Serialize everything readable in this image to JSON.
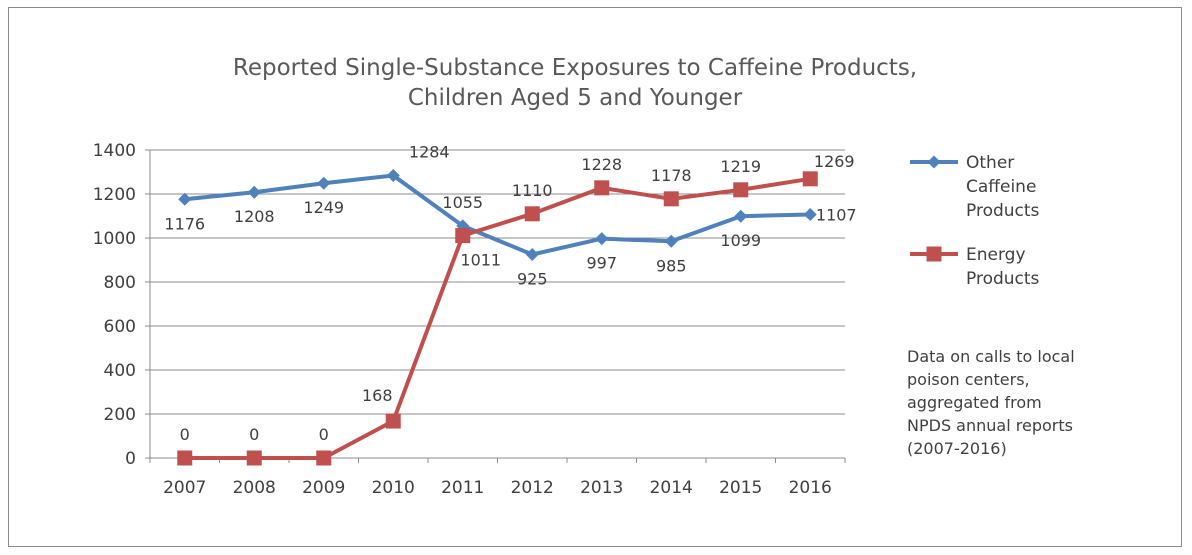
{
  "chart_data": {
    "type": "line",
    "title_lines": [
      "Reported Single-Substance Exposures to Caffeine Products,",
      "Children Aged 5 and Younger"
    ],
    "categories": [
      "2007",
      "2008",
      "2009",
      "2010",
      "2011",
      "2012",
      "2013",
      "2014",
      "2015",
      "2016"
    ],
    "ylim": [
      0,
      1400
    ],
    "yticks": [
      0,
      200,
      400,
      600,
      800,
      1000,
      1200,
      1400
    ],
    "grid": true,
    "legend_position": "right",
    "series": [
      {
        "name_lines": [
          "Other",
          "Caffeine",
          "Products"
        ],
        "color": "#4f81bd",
        "marker": "diamond",
        "values": [
          1176,
          1208,
          1249,
          1284,
          1055,
          925,
          997,
          985,
          1099,
          1107
        ]
      },
      {
        "name_lines": [
          "Energy",
          "Products"
        ],
        "color": "#c0504d",
        "marker": "square",
        "values": [
          0,
          0,
          0,
          168,
          1011,
          1110,
          1228,
          1178,
          1219,
          1269
        ]
      }
    ],
    "note_lines": [
      "Data on calls to local",
      "poison centers,",
      "aggregated from",
      "NPDS annual reports",
      "(2007-2016)"
    ]
  }
}
